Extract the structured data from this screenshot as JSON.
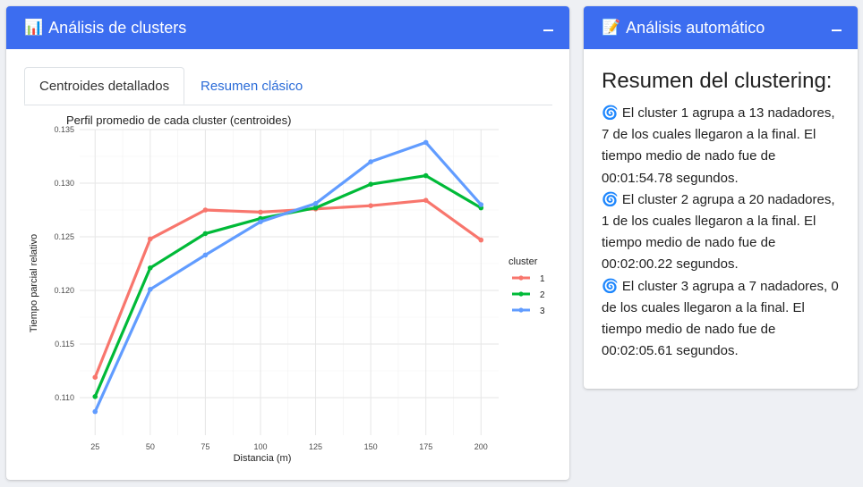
{
  "left_box": {
    "icon": "📊",
    "title": "Análisis de clusters",
    "tabs": [
      {
        "label": "Centroides detallados",
        "active": true
      },
      {
        "label": "Resumen clásico",
        "active": false
      }
    ]
  },
  "right_box": {
    "icon": "📝",
    "title": "Análisis automático",
    "heading": "Resumen del clustering:",
    "paragraphs": [
      {
        "icon": "🌀",
        "text": "El cluster 1 agrupa a 13 nadadores, 7 de los cuales llegaron a la final. El tiempo medio de nado fue de 00:01:54.78 segundos."
      },
      {
        "icon": "🌀",
        "text": "El cluster 2 agrupa a 20 nadadores, 1 de los cuales llegaron a la final. El tiempo medio de nado fue de 00:02:00.22 segundos."
      },
      {
        "icon": "🌀",
        "text": "El cluster 3 agrupa a 7 nadadores, 0 de los cuales llegaron a la final. El tiempo medio de nado fue de 00:02:05.61 segundos."
      }
    ]
  },
  "colors": {
    "header": "#3c6df0",
    "c1": "#f8766d",
    "c2": "#00ba38",
    "c3": "#619cff"
  },
  "chart_data": {
    "type": "line",
    "title": "Perfil promedio de cada cluster (centroides)",
    "xlabel": "Distancia (m)",
    "ylabel": "Tiempo parcial relativo",
    "x": [
      25,
      50,
      75,
      100,
      125,
      150,
      175,
      200
    ],
    "xlim": [
      18,
      208
    ],
    "ylim": [
      0.1065,
      0.135
    ],
    "yticks": [
      0.11,
      0.115,
      0.12,
      0.125,
      0.13,
      0.135
    ],
    "ytick_labels": [
      "0.110",
      "0.115",
      "0.120",
      "0.125",
      "0.130",
      "0.135"
    ],
    "legend_title": "cluster",
    "legend_position": "right",
    "grid": true,
    "series": [
      {
        "name": "1",
        "color": "#f8766d",
        "values": [
          0.1119,
          0.1248,
          0.1275,
          0.1273,
          0.1276,
          0.1279,
          0.1284,
          0.1247
        ]
      },
      {
        "name": "2",
        "color": "#00ba38",
        "values": [
          0.1101,
          0.1221,
          0.1253,
          0.1267,
          0.1277,
          0.1299,
          0.1307,
          0.1277
        ]
      },
      {
        "name": "3",
        "color": "#619cff",
        "values": [
          0.1087,
          0.1201,
          0.1233,
          0.1264,
          0.1281,
          0.132,
          0.1338,
          0.128
        ]
      }
    ]
  }
}
